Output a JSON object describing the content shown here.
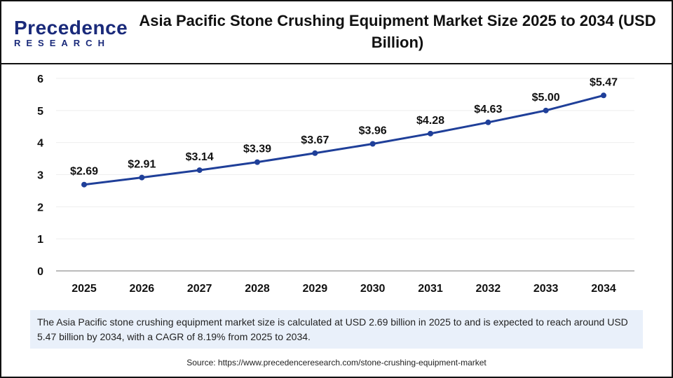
{
  "header": {
    "logo_line1": "Precedence",
    "logo_line2": "RESEARCH",
    "title": "Asia Pacific Stone Crushing Equipment Market Size 2025 to 2034 (USD Billion)"
  },
  "chart_data": {
    "type": "line",
    "title": "Asia Pacific Stone Crushing Equipment Market Size 2025 to 2034 (USD Billion)",
    "categories": [
      "2025",
      "2026",
      "2027",
      "2028",
      "2029",
      "2030",
      "2031",
      "2032",
      "2033",
      "2034"
    ],
    "values": [
      2.69,
      2.91,
      3.14,
      3.39,
      3.67,
      3.96,
      4.28,
      4.63,
      5.0,
      5.47
    ],
    "data_labels": [
      "$2.69",
      "$2.91",
      "$3.14",
      "$3.39",
      "$3.67",
      "$3.96",
      "$4.28",
      "$4.63",
      "$5.00",
      "$5.47"
    ],
    "yticks": [
      "0",
      "1",
      "2",
      "3",
      "4",
      "5",
      "6"
    ],
    "ylim": [
      0,
      6
    ],
    "grid": true,
    "line_color": "#1f3f99"
  },
  "description": "The Asia Pacific stone crushing equipment market size is calculated at USD 2.69 billion in 2025 to and is expected to reach around USD 5.47 billion by 2034, with a CAGR of 8.19% from 2025 to 2034.",
  "source": "Source: https://www.precedenceresearch.com/stone-crushing-equipment-market"
}
